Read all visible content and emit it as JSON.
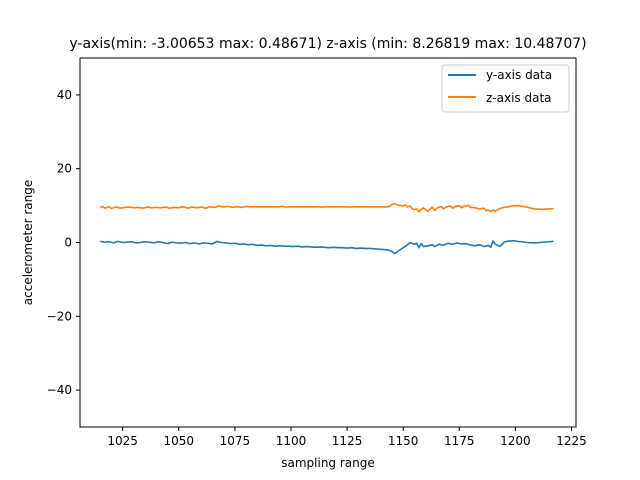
{
  "chart_data": {
    "type": "line",
    "title": "y-axis(min: -3.00653  max: 0.48671) z-axis (min: 8.26819 max: 10.48707)",
    "xlabel": "sampling range",
    "ylabel": "accelerometer range",
    "xlim": [
      1006,
      1227
    ],
    "ylim": [
      -50,
      50
    ],
    "xticks": [
      1025,
      1050,
      1075,
      1100,
      1125,
      1150,
      1175,
      1200,
      1225
    ],
    "yticks": [
      -40,
      -20,
      0,
      20,
      40
    ],
    "grid": false,
    "legend_position": "top-right",
    "series": [
      {
        "name": "y-axis data",
        "color": "#1f77b4",
        "points": [
          [
            1015,
            0.3
          ],
          [
            1017,
            0.1
          ],
          [
            1019,
            0.2
          ],
          [
            1021,
            -0.1
          ],
          [
            1023,
            0.3
          ],
          [
            1025,
            0.0
          ],
          [
            1027,
            0.1
          ],
          [
            1029,
            0.2
          ],
          [
            1031,
            -0.1
          ],
          [
            1033,
            0.0
          ],
          [
            1035,
            0.2
          ],
          [
            1037,
            0.1
          ],
          [
            1039,
            -0.1
          ],
          [
            1041,
            0.2
          ],
          [
            1043,
            0.0
          ],
          [
            1045,
            -0.3
          ],
          [
            1047,
            0.1
          ],
          [
            1049,
            -0.1
          ],
          [
            1051,
            -0.2
          ],
          [
            1053,
            0.0
          ],
          [
            1055,
            -0.3
          ],
          [
            1057,
            -0.1
          ],
          [
            1059,
            -0.4
          ],
          [
            1061,
            -0.1
          ],
          [
            1063,
            -0.2
          ],
          [
            1065,
            -0.4
          ],
          [
            1067,
            0.3
          ],
          [
            1069,
            0.0
          ],
          [
            1071,
            -0.1
          ],
          [
            1073,
            -0.3
          ],
          [
            1075,
            -0.2
          ],
          [
            1077,
            -0.5
          ],
          [
            1079,
            -0.4
          ],
          [
            1081,
            -0.6
          ],
          [
            1083,
            -0.5
          ],
          [
            1085,
            -0.8
          ],
          [
            1087,
            -0.7
          ],
          [
            1089,
            -0.9
          ],
          [
            1091,
            -0.8
          ],
          [
            1093,
            -1.0
          ],
          [
            1095,
            -0.9
          ],
          [
            1097,
            -1.0
          ],
          [
            1099,
            -1.0
          ],
          [
            1101,
            -1.1
          ],
          [
            1103,
            -1.0
          ],
          [
            1105,
            -1.2
          ],
          [
            1107,
            -1.1
          ],
          [
            1109,
            -1.2
          ],
          [
            1111,
            -1.3
          ],
          [
            1113,
            -1.2
          ],
          [
            1115,
            -1.3
          ],
          [
            1117,
            -1.4
          ],
          [
            1119,
            -1.3
          ],
          [
            1121,
            -1.4
          ],
          [
            1123,
            -1.4
          ],
          [
            1125,
            -1.5
          ],
          [
            1127,
            -1.4
          ],
          [
            1129,
            -1.6
          ],
          [
            1131,
            -1.5
          ],
          [
            1133,
            -1.6
          ],
          [
            1135,
            -1.6
          ],
          [
            1137,
            -1.7
          ],
          [
            1139,
            -1.8
          ],
          [
            1141,
            -1.9
          ],
          [
            1143,
            -2.0
          ],
          [
            1145,
            -2.4
          ],
          [
            1146,
            -3.0
          ],
          [
            1147,
            -2.7
          ],
          [
            1148,
            -2.2
          ],
          [
            1150,
            -1.4
          ],
          [
            1152,
            -0.6
          ],
          [
            1153,
            0.0
          ],
          [
            1155,
            -0.5
          ],
          [
            1156,
            -0.2
          ],
          [
            1157,
            -1.4
          ],
          [
            1158,
            -0.3
          ],
          [
            1159,
            -1.1
          ],
          [
            1161,
            -0.9
          ],
          [
            1163,
            -0.6
          ],
          [
            1164,
            -1.1
          ],
          [
            1166,
            -0.5
          ],
          [
            1168,
            -0.7
          ],
          [
            1170,
            -0.2
          ],
          [
            1172,
            -0.5
          ],
          [
            1174,
            -0.1
          ],
          [
            1176,
            -0.4
          ],
          [
            1178,
            -0.3
          ],
          [
            1180,
            -0.7
          ],
          [
            1182,
            -0.9
          ],
          [
            1184,
            -0.6
          ],
          [
            1186,
            -1.1
          ],
          [
            1188,
            -0.8
          ],
          [
            1189,
            -1.3
          ],
          [
            1190,
            0.4
          ],
          [
            1191,
            -0.4
          ],
          [
            1193,
            -1.1
          ],
          [
            1195,
            0.1
          ],
          [
            1197,
            0.4
          ],
          [
            1199,
            0.5
          ],
          [
            1201,
            0.3
          ],
          [
            1203,
            0.2
          ],
          [
            1205,
            0.0
          ],
          [
            1207,
            -0.1
          ],
          [
            1209,
            -0.1
          ],
          [
            1211,
            0.0
          ],
          [
            1213,
            0.1
          ],
          [
            1215,
            0.2
          ],
          [
            1217,
            0.3
          ]
        ]
      },
      {
        "name": "z-axis data",
        "color": "#ff7f0e",
        "points": [
          [
            1015,
            9.4
          ],
          [
            1016,
            9.8
          ],
          [
            1017,
            9.3
          ],
          [
            1019,
            9.7
          ],
          [
            1020,
            9.2
          ],
          [
            1022,
            9.6
          ],
          [
            1024,
            9.3
          ],
          [
            1026,
            9.5
          ],
          [
            1028,
            9.6
          ],
          [
            1030,
            9.4
          ],
          [
            1032,
            9.5
          ],
          [
            1034,
            9.3
          ],
          [
            1036,
            9.6
          ],
          [
            1038,
            9.4
          ],
          [
            1040,
            9.5
          ],
          [
            1042,
            9.4
          ],
          [
            1044,
            9.6
          ],
          [
            1046,
            9.3
          ],
          [
            1048,
            9.5
          ],
          [
            1050,
            9.4
          ],
          [
            1052,
            9.7
          ],
          [
            1054,
            9.3
          ],
          [
            1056,
            9.6
          ],
          [
            1058,
            9.4
          ],
          [
            1060,
            9.6
          ],
          [
            1062,
            9.3
          ],
          [
            1064,
            9.7
          ],
          [
            1066,
            9.5
          ],
          [
            1068,
            9.9
          ],
          [
            1070,
            9.6
          ],
          [
            1072,
            9.8
          ],
          [
            1074,
            9.5
          ],
          [
            1076,
            9.7
          ],
          [
            1078,
            9.5
          ],
          [
            1080,
            9.8
          ],
          [
            1082,
            9.6
          ],
          [
            1084,
            9.7
          ],
          [
            1086,
            9.6
          ],
          [
            1088,
            9.7
          ],
          [
            1090,
            9.6
          ],
          [
            1092,
            9.7
          ],
          [
            1094,
            9.6
          ],
          [
            1096,
            9.8
          ],
          [
            1098,
            9.6
          ],
          [
            1100,
            9.7
          ],
          [
            1102,
            9.6
          ],
          [
            1104,
            9.7
          ],
          [
            1106,
            9.6
          ],
          [
            1108,
            9.7
          ],
          [
            1110,
            9.6
          ],
          [
            1112,
            9.7
          ],
          [
            1114,
            9.6
          ],
          [
            1116,
            9.7
          ],
          [
            1118,
            9.6
          ],
          [
            1120,
            9.7
          ],
          [
            1122,
            9.6
          ],
          [
            1124,
            9.7
          ],
          [
            1126,
            9.6
          ],
          [
            1128,
            9.7
          ],
          [
            1130,
            9.6
          ],
          [
            1132,
            9.7
          ],
          [
            1134,
            9.6
          ],
          [
            1136,
            9.7
          ],
          [
            1138,
            9.6
          ],
          [
            1140,
            9.7
          ],
          [
            1142,
            9.6
          ],
          [
            1144,
            9.8
          ],
          [
            1145,
            10.3
          ],
          [
            1146,
            10.5
          ],
          [
            1148,
            10.1
          ],
          [
            1150,
            9.9
          ],
          [
            1151,
            10.2
          ],
          [
            1152,
            9.6
          ],
          [
            1153,
            9.9
          ],
          [
            1154,
            9.2
          ],
          [
            1155,
            8.9
          ],
          [
            1156,
            9.1
          ],
          [
            1157,
            8.3
          ],
          [
            1158,
            9.0
          ],
          [
            1159,
            9.4
          ],
          [
            1160,
            8.8
          ],
          [
            1161,
            8.5
          ],
          [
            1163,
            9.6
          ],
          [
            1164,
            8.7
          ],
          [
            1165,
            9.3
          ],
          [
            1167,
            9.8
          ],
          [
            1168,
            9.1
          ],
          [
            1169,
            9.6
          ],
          [
            1171,
            9.9
          ],
          [
            1172,
            9.3
          ],
          [
            1173,
            9.7
          ],
          [
            1175,
            10.0
          ],
          [
            1176,
            9.4
          ],
          [
            1177,
            9.8
          ],
          [
            1179,
            10.1
          ],
          [
            1180,
            9.5
          ],
          [
            1182,
            9.4
          ],
          [
            1184,
            9.1
          ],
          [
            1186,
            9.3
          ],
          [
            1187,
            8.6
          ],
          [
            1188,
            8.8
          ],
          [
            1189,
            8.4
          ],
          [
            1190,
            8.8
          ],
          [
            1191,
            8.5
          ],
          [
            1193,
            9.2
          ],
          [
            1195,
            9.5
          ],
          [
            1197,
            9.7
          ],
          [
            1199,
            9.9
          ],
          [
            1201,
            10.0
          ],
          [
            1203,
            9.8
          ],
          [
            1205,
            9.6
          ],
          [
            1207,
            9.3
          ],
          [
            1209,
            9.1
          ],
          [
            1211,
            9.0
          ],
          [
            1213,
            9.0
          ],
          [
            1215,
            9.1
          ],
          [
            1217,
            9.2
          ]
        ]
      }
    ]
  }
}
